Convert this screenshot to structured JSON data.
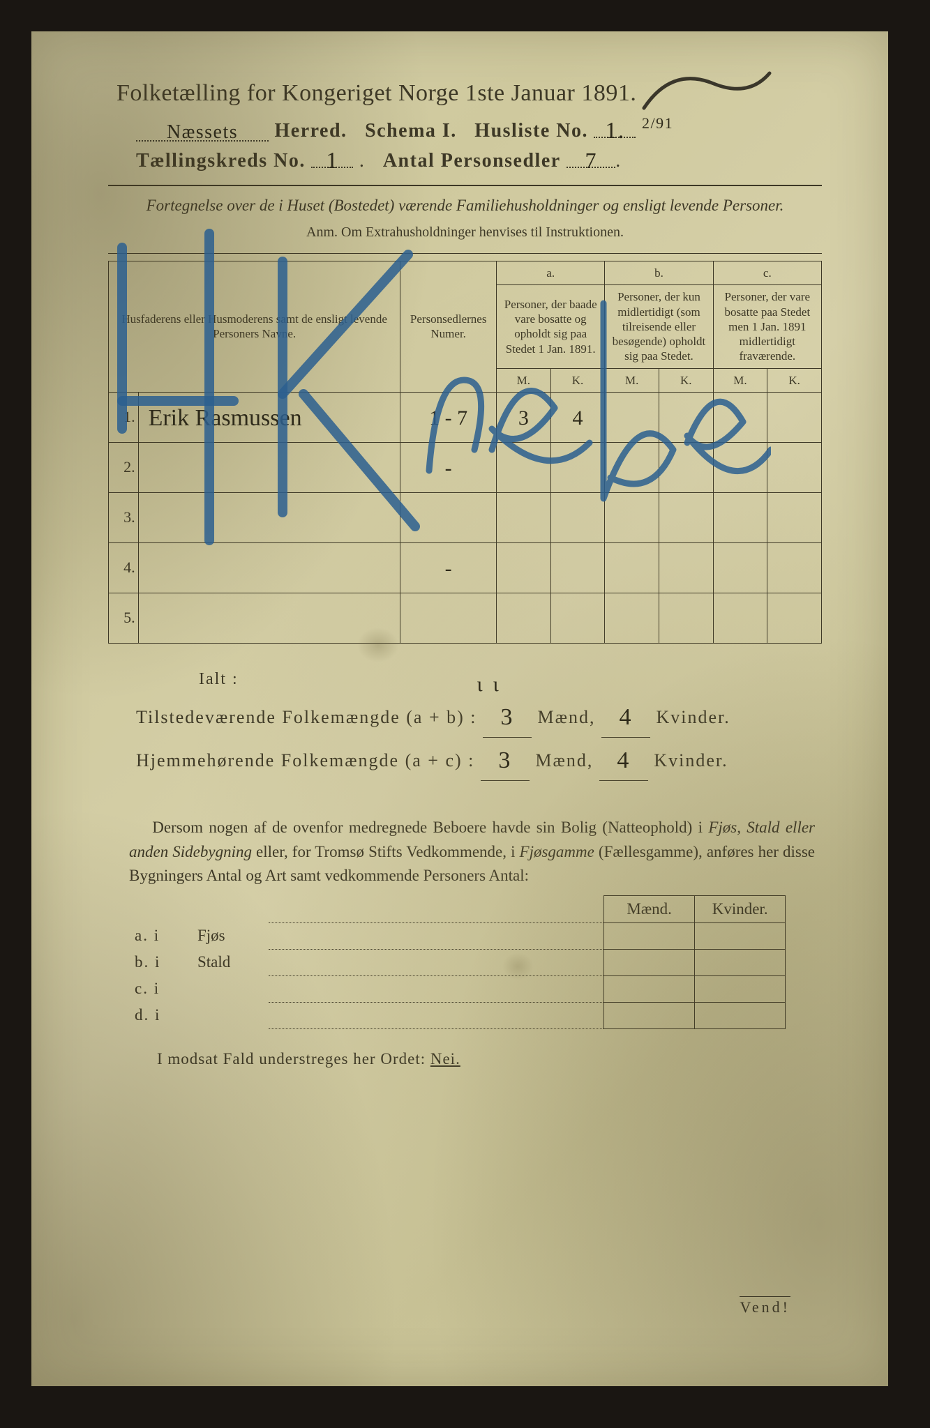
{
  "colors": {
    "paper_from": "#d4cfa8",
    "paper_to": "#c8c296",
    "ink": "#3d3826",
    "handwriting": "#2e2a1a",
    "blue_pencil": "#2b5f8f",
    "frame": "#1a1612"
  },
  "typography": {
    "print_family": "Georgia, Times New Roman, serif",
    "script_family": "Brush Script MT, Segoe Script, cursive",
    "title_pt": 34,
    "subline_pt": 28,
    "body_pt": 23,
    "table_header_pt": 17
  },
  "header": {
    "title": "Folketælling for Kongeriget Norge 1ste Januar 1891.",
    "herred_value": "Næssets",
    "herred_label": "Herred.",
    "schema_label": "Schema I.",
    "husliste_label": "Husliste No.",
    "husliste_value": "1.",
    "husliste_ratio": "2/91",
    "kreds_label": "Tællingskreds No.",
    "kreds_value": "1",
    "antal_label": "Antal Personsedler",
    "antal_value": "7"
  },
  "intro": {
    "line": "Fortegnelse over de i Huset (Bostedet) værende Familiehusholdninger og ensligt levende Personer.",
    "anm": "Anm. Om Extrahusholdninger henvises til Instruktionen."
  },
  "table": {
    "col_name": "Husfaderens eller Husmoderens samt de ensligt levende Personers Navne.",
    "col_num": "Personsedlernes Numer.",
    "group_a": "a.",
    "col_a": "Personer, der baade vare bosatte og opholdt sig paa Stedet 1 Jan. 1891.",
    "group_b": "b.",
    "col_b": "Personer, der kun midlertidigt (som tilreisende eller besøgende) opholdt sig paa Stedet.",
    "group_c": "c.",
    "col_c": "Personer, der vare bosatte paa Stedet men 1 Jan. 1891 midlertidigt fraværende.",
    "M": "M.",
    "K": "K.",
    "rows": [
      {
        "n": "1.",
        "name": "Erik Rasmussen",
        "num": "1 - 7",
        "aM": "3",
        "aK": "4",
        "bM": "",
        "bK": "",
        "cM": "",
        "cK": ""
      },
      {
        "n": "2.",
        "name": "",
        "num": "-",
        "aM": "",
        "aK": "",
        "bM": "",
        "bK": "",
        "cM": "",
        "cK": ""
      },
      {
        "n": "3.",
        "name": "",
        "num": "",
        "aM": "",
        "aK": "",
        "bM": "",
        "bK": "",
        "cM": "",
        "cK": ""
      },
      {
        "n": "4.",
        "name": "",
        "num": "-",
        "aM": "",
        "aK": "",
        "bM": "",
        "bK": "",
        "cM": "",
        "cK": ""
      },
      {
        "n": "5.",
        "name": "",
        "num": "",
        "aM": "",
        "aK": "",
        "bM": "",
        "bK": "",
        "cM": "",
        "cK": ""
      }
    ]
  },
  "totals": {
    "ialt": "Ialt :",
    "line1_label_a": "Tilstedeværende Folkemængde (a + b) :",
    "line2_label_a": "Hjemmehørende Folkemængde (a + c) :",
    "maend": "Mænd,",
    "kvinder": "Kvinder.",
    "t_m": "3",
    "t_k": "4",
    "h_m": "3",
    "h_k": "4"
  },
  "paragraph": {
    "text_a": "Dersom nogen af de ovenfor medregnede Beboere havde sin Bolig (Natteophold) i ",
    "it1": "Fjøs, Stald eller anden Sidebygning",
    "text_b": " eller, for Tromsø Stifts Vedkommende, i ",
    "it2": "Fjøsgamme",
    "text_c": " (Fællesgamme), anføres her disse Bygningers Antal og Art samt vedkommende Personers Antal:"
  },
  "side_table": {
    "maend": "Mænd.",
    "kvinder": "Kvinder.",
    "rows": [
      {
        "lab": "a.  i",
        "what": "Fjøs"
      },
      {
        "lab": "b.  i",
        "what": "Stald"
      },
      {
        "lab": "c.  i",
        "what": ""
      },
      {
        "lab": "d.  i",
        "what": ""
      }
    ]
  },
  "nei": "I modsat Fald understreges her Ordet: ",
  "nei_word": "Nei.",
  "vend": "Vend!",
  "blue_overlay_text": "4 Krebe"
}
